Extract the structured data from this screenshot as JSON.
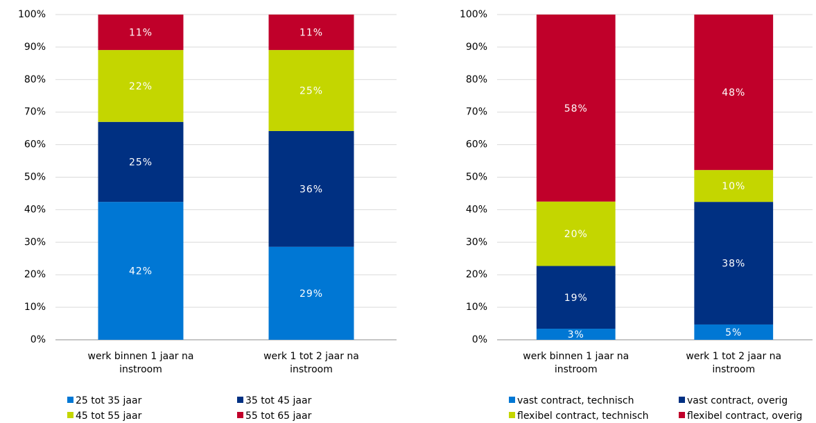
{
  "chart_data": [
    {
      "type": "bar",
      "stacked": true,
      "categories": [
        "werk binnen 1 jaar na instroom",
        "werk 1 tot 2 jaar na instroom"
      ],
      "series": [
        {
          "name": "25 tot 35 jaar",
          "color": "#0077d4",
          "values": [
            42.4,
            28.6
          ],
          "value_labels": [
            "42%",
            "29%"
          ]
        },
        {
          "name": "35 tot 45 jaar",
          "color": "#003082",
          "values": [
            24.6,
            35.6
          ],
          "value_labels": [
            "25%",
            "36%"
          ]
        },
        {
          "name": "45 tot 55 jaar",
          "color": "#c4d600",
          "values": [
            22.1,
            24.9
          ],
          "value_labels": [
            "22%",
            "25%"
          ]
        },
        {
          "name": "55 tot 65 jaar",
          "color": "#c0002a",
          "values": [
            10.9,
            10.9
          ],
          "value_labels": [
            "11%",
            "11%"
          ]
        }
      ],
      "ylim": [
        0,
        100
      ],
      "yticks": [
        {
          "value": 0,
          "label": "0%"
        },
        {
          "value": 10,
          "label": "10%"
        },
        {
          "value": 20,
          "label": "20%"
        },
        {
          "value": 30,
          "label": "30%"
        },
        {
          "value": 40,
          "label": "40%"
        },
        {
          "value": 50,
          "label": "50%"
        },
        {
          "value": 60,
          "label": "60%"
        },
        {
          "value": 70,
          "label": "70%"
        },
        {
          "value": 80,
          "label": "80%"
        },
        {
          "value": 90,
          "label": "90%"
        },
        {
          "value": 100,
          "label": "100%"
        }
      ],
      "grid": true,
      "legend": "bottom"
    },
    {
      "type": "bar",
      "stacked": true,
      "categories": [
        "werk binnen 1 jaar na instroom",
        "werk 1 tot 2 jaar na instroom"
      ],
      "series": [
        {
          "name": "vast contract, technisch",
          "color": "#0077d4",
          "values": [
            3.4,
            4.7
          ],
          "value_labels": [
            "3%",
            "5%"
          ]
        },
        {
          "name": "vast contract, overig",
          "color": "#003082",
          "values": [
            19.3,
            37.7
          ],
          "value_labels": [
            "19%",
            "38%"
          ]
        },
        {
          "name": "flexibel contract, technisch",
          "color": "#c4d600",
          "values": [
            19.8,
            9.8
          ],
          "value_labels": [
            "20%",
            "10%"
          ]
        },
        {
          "name": "flexibel contract, overig",
          "color": "#c0002a",
          "values": [
            57.5,
            47.8
          ],
          "value_labels": [
            "58%",
            "48%"
          ]
        }
      ],
      "ylim": [
        0,
        100
      ],
      "yticks": [
        {
          "value": 0,
          "label": "0%"
        },
        {
          "value": 10,
          "label": "10%"
        },
        {
          "value": 20,
          "label": "20%"
        },
        {
          "value": 30,
          "label": "30%"
        },
        {
          "value": 40,
          "label": "40%"
        },
        {
          "value": 50,
          "label": "50%"
        },
        {
          "value": 60,
          "label": "60%"
        },
        {
          "value": 70,
          "label": "70%"
        },
        {
          "value": 80,
          "label": "80%"
        },
        {
          "value": 90,
          "label": "90%"
        },
        {
          "value": 100,
          "label": "100%"
        }
      ],
      "grid": true,
      "legend": "bottom"
    }
  ]
}
